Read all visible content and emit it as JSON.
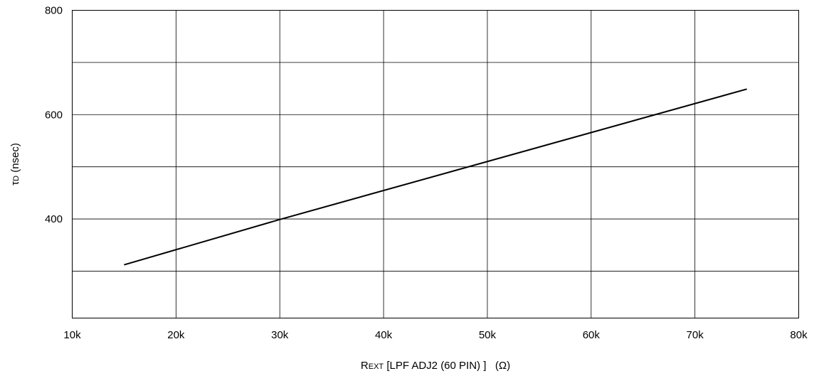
{
  "chart_data": {
    "type": "line",
    "title": "",
    "xlabel": "REXT [LPF ADJ2 (60 PIN) ]   (Ω)",
    "xlabel_parts": {
      "r": "R",
      "ext": "EXT",
      "rest": " [LPF ADJ2 (60 PIN) ]   (Ω)"
    },
    "ylabel": "τD (nsec)",
    "ylabel_parts": {
      "tau": "τ",
      "sub": "D",
      "unit": " (nsec)"
    },
    "xlim": [
      10000,
      80000
    ],
    "ylim": [
      210,
      800
    ],
    "x_ticks": [
      {
        "value": 10000,
        "label": "10k"
      },
      {
        "value": 20000,
        "label": "20k"
      },
      {
        "value": 30000,
        "label": "30k"
      },
      {
        "value": 40000,
        "label": "40k"
      },
      {
        "value": 50000,
        "label": "50k"
      },
      {
        "value": 60000,
        "label": "60k"
      },
      {
        "value": 70000,
        "label": "70k"
      },
      {
        "value": 80000,
        "label": "80k"
      }
    ],
    "y_ticks": [
      {
        "value": 400,
        "label": "400"
      },
      {
        "value": 600,
        "label": "600"
      },
      {
        "value": 800,
        "label": "800"
      }
    ],
    "y_gridlines": [
      300,
      400,
      500,
      600,
      700,
      800
    ],
    "grid": true,
    "series": [
      {
        "color": "#000000",
        "x": [
          15000,
          30000,
          75000
        ],
        "y": [
          312,
          399,
          649
        ]
      }
    ]
  }
}
